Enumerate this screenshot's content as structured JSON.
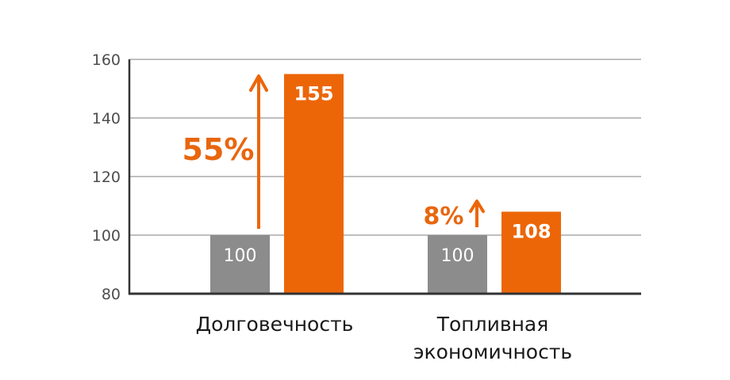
{
  "chart_data": {
    "type": "bar",
    "categories": [
      [
        "Долговечность"
      ],
      [
        "Топливная",
        "экономичность"
      ]
    ],
    "series": [
      {
        "values": [
          100,
          100
        ]
      },
      {
        "values": [
          155,
          108
        ]
      }
    ],
    "annotations": [
      {
        "category": 0,
        "text": "55%"
      },
      {
        "category": 1,
        "text": "8%"
      }
    ],
    "yticks": [
      "80",
      "100",
      "120",
      "140",
      "160"
    ],
    "ylim": [
      80,
      160
    ],
    "grid": true,
    "colors": {
      "baseline": "#8c8c8c",
      "improved": "#ec6608",
      "grid": "#999999",
      "axis": "#333333"
    }
  }
}
